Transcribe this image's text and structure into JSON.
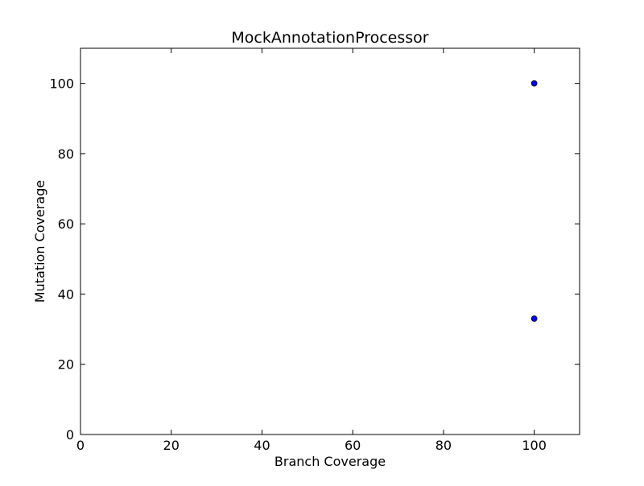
{
  "chart_data": {
    "type": "scatter",
    "title": "MockAnnotationProcessor",
    "xlabel": "Branch Coverage",
    "ylabel": "Mutation Coverage",
    "xlim": [
      0,
      110
    ],
    "ylim": [
      0,
      110
    ],
    "xticks": [
      0,
      20,
      40,
      60,
      80,
      100
    ],
    "yticks": [
      0,
      20,
      40,
      60,
      80,
      100
    ],
    "grid": false,
    "points": [
      {
        "x": 100,
        "y": 100
      },
      {
        "x": 100,
        "y": 33
      }
    ],
    "marker_color": "#0000ff",
    "marker_edge_color": "#000000"
  }
}
